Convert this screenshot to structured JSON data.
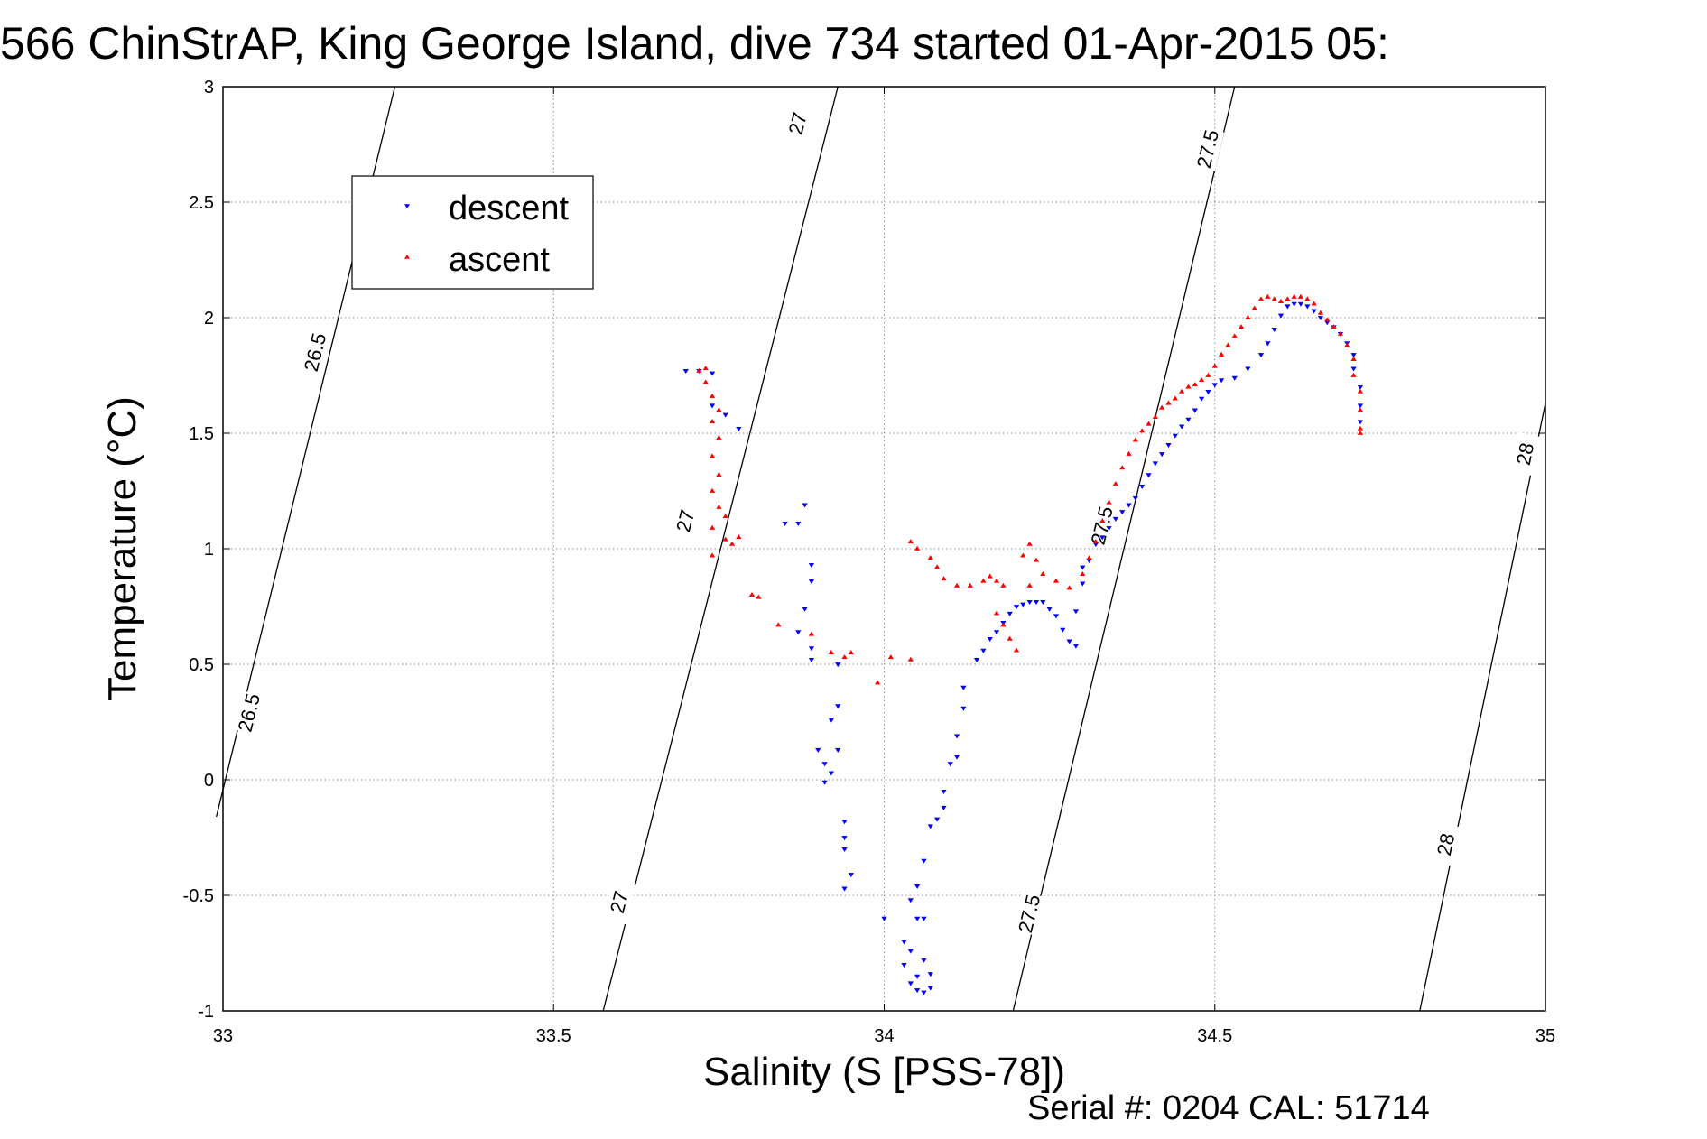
{
  "title": "566 ChinStrAP, King George Island, dive 734 started 01-Apr-2015 05:",
  "footer": "Serial #: 0204  CAL: 51714",
  "chart_data": {
    "type": "scatter",
    "xlabel": "Salinity (S [PSS-78])",
    "ylabel": "Temperature (°C)",
    "xlim": [
      33,
      35
    ],
    "ylim": [
      -1,
      3
    ],
    "xticks": [
      "33",
      "33.5",
      "34",
      "34.5",
      "35"
    ],
    "yticks": [
      "-1",
      "-0.5",
      "0",
      "0.5",
      "1",
      "1.5",
      "2",
      "2.5",
      "3"
    ],
    "grid": true,
    "legend_position": "top-left",
    "series": [
      {
        "name": "descent",
        "marker": "triangle-down",
        "color": "#0000ff",
        "points": [
          [
            33.7,
            1.77
          ],
          [
            33.72,
            1.77
          ],
          [
            33.74,
            1.76
          ],
          [
            33.74,
            1.62
          ],
          [
            33.76,
            1.58
          ],
          [
            33.78,
            1.52
          ],
          [
            33.85,
            1.11
          ],
          [
            33.87,
            1.11
          ],
          [
            33.88,
            1.19
          ],
          [
            33.89,
            0.93
          ],
          [
            33.89,
            0.86
          ],
          [
            33.88,
            0.74
          ],
          [
            33.87,
            0.64
          ],
          [
            33.89,
            0.57
          ],
          [
            33.89,
            0.52
          ],
          [
            33.93,
            0.5
          ],
          [
            33.93,
            0.32
          ],
          [
            33.92,
            0.26
          ],
          [
            33.93,
            0.13
          ],
          [
            33.91,
            0.07
          ],
          [
            33.9,
            0.13
          ],
          [
            33.92,
            0.03
          ],
          [
            33.91,
            -0.01
          ],
          [
            33.94,
            -0.18
          ],
          [
            33.94,
            -0.25
          ],
          [
            33.94,
            -0.3
          ],
          [
            33.95,
            -0.41
          ],
          [
            33.94,
            -0.47
          ],
          [
            34.0,
            -0.6
          ],
          [
            34.04,
            -0.52
          ],
          [
            34.05,
            -0.6
          ],
          [
            34.03,
            -0.7
          ],
          [
            34.04,
            -0.74
          ],
          [
            34.03,
            -0.8
          ],
          [
            34.05,
            -0.85
          ],
          [
            34.04,
            -0.88
          ],
          [
            34.05,
            -0.91
          ],
          [
            34.06,
            -0.92
          ],
          [
            34.07,
            -0.9
          ],
          [
            34.07,
            -0.84
          ],
          [
            34.06,
            -0.78
          ],
          [
            34.06,
            -0.6
          ],
          [
            34.05,
            -0.46
          ],
          [
            34.06,
            -0.35
          ],
          [
            34.07,
            -0.2
          ],
          [
            34.08,
            -0.17
          ],
          [
            34.09,
            -0.12
          ],
          [
            34.09,
            -0.05
          ],
          [
            34.1,
            0.07
          ],
          [
            34.11,
            0.1
          ],
          [
            34.11,
            0.19
          ],
          [
            34.12,
            0.31
          ],
          [
            34.12,
            0.4
          ],
          [
            34.14,
            0.52
          ],
          [
            34.15,
            0.56
          ],
          [
            34.16,
            0.61
          ],
          [
            34.17,
            0.64
          ],
          [
            34.18,
            0.68
          ],
          [
            34.19,
            0.72
          ],
          [
            34.2,
            0.75
          ],
          [
            34.21,
            0.76
          ],
          [
            34.22,
            0.77
          ],
          [
            34.23,
            0.77
          ],
          [
            34.24,
            0.77
          ],
          [
            34.25,
            0.74
          ],
          [
            34.26,
            0.71
          ],
          [
            34.27,
            0.65
          ],
          [
            34.28,
            0.6
          ],
          [
            34.29,
            0.58
          ],
          [
            34.29,
            0.73
          ],
          [
            34.3,
            0.85
          ],
          [
            34.3,
            0.92
          ],
          [
            34.31,
            0.95
          ],
          [
            34.32,
            1.02
          ],
          [
            34.33,
            1.05
          ],
          [
            34.34,
            1.09
          ],
          [
            34.35,
            1.13
          ],
          [
            34.36,
            1.16
          ],
          [
            34.37,
            1.19
          ],
          [
            34.38,
            1.22
          ],
          [
            34.39,
            1.27
          ],
          [
            34.4,
            1.32
          ],
          [
            34.41,
            1.37
          ],
          [
            34.42,
            1.41
          ],
          [
            34.43,
            1.45
          ],
          [
            34.44,
            1.49
          ],
          [
            34.45,
            1.53
          ],
          [
            34.46,
            1.56
          ],
          [
            34.47,
            1.6
          ],
          [
            34.48,
            1.65
          ],
          [
            34.49,
            1.68
          ],
          [
            34.5,
            1.71
          ],
          [
            34.51,
            1.73
          ],
          [
            34.53,
            1.74
          ],
          [
            34.55,
            1.78
          ],
          [
            34.57,
            1.84
          ],
          [
            34.58,
            1.89
          ],
          [
            34.59,
            1.95
          ],
          [
            34.6,
            2.01
          ],
          [
            34.61,
            2.05
          ],
          [
            34.62,
            2.06
          ],
          [
            34.63,
            2.06
          ],
          [
            34.64,
            2.05
          ],
          [
            34.65,
            2.03
          ],
          [
            34.66,
            2.0
          ],
          [
            34.67,
            1.98
          ],
          [
            34.68,
            1.96
          ],
          [
            34.69,
            1.93
          ],
          [
            34.7,
            1.89
          ],
          [
            34.71,
            1.84
          ],
          [
            34.71,
            1.78
          ],
          [
            34.72,
            1.7
          ],
          [
            34.72,
            1.62
          ],
          [
            34.72,
            1.55
          ]
        ]
      },
      {
        "name": "ascent",
        "marker": "triangle-up",
        "color": "#ff0000",
        "points": [
          [
            33.73,
            1.78
          ],
          [
            33.72,
            1.77
          ],
          [
            33.73,
            1.72
          ],
          [
            33.74,
            1.66
          ],
          [
            33.75,
            1.6
          ],
          [
            33.74,
            1.55
          ],
          [
            33.75,
            1.48
          ],
          [
            33.74,
            1.4
          ],
          [
            33.75,
            1.32
          ],
          [
            33.74,
            1.25
          ],
          [
            33.75,
            1.18
          ],
          [
            33.76,
            1.14
          ],
          [
            33.74,
            1.09
          ],
          [
            33.76,
            1.04
          ],
          [
            33.77,
            1.02
          ],
          [
            33.74,
            0.97
          ],
          [
            33.78,
            1.05
          ],
          [
            33.8,
            0.8
          ],
          [
            33.81,
            0.79
          ],
          [
            33.84,
            0.67
          ],
          [
            33.89,
            0.63
          ],
          [
            33.92,
            0.55
          ],
          [
            33.94,
            0.53
          ],
          [
            33.95,
            0.55
          ],
          [
            33.99,
            0.42
          ],
          [
            34.01,
            0.53
          ],
          [
            34.04,
            0.52
          ],
          [
            34.04,
            1.03
          ],
          [
            34.05,
            1.0
          ],
          [
            34.07,
            0.96
          ],
          [
            34.08,
            0.92
          ],
          [
            34.09,
            0.87
          ],
          [
            34.11,
            0.84
          ],
          [
            34.13,
            0.84
          ],
          [
            34.15,
            0.86
          ],
          [
            34.16,
            0.88
          ],
          [
            34.17,
            0.86
          ],
          [
            34.18,
            0.84
          ],
          [
            34.17,
            0.72
          ],
          [
            34.18,
            0.67
          ],
          [
            34.19,
            0.61
          ],
          [
            34.2,
            0.56
          ],
          [
            34.22,
            0.84
          ],
          [
            34.21,
            0.97
          ],
          [
            34.22,
            1.02
          ],
          [
            34.23,
            0.95
          ],
          [
            34.24,
            0.89
          ],
          [
            34.26,
            0.86
          ],
          [
            34.28,
            0.83
          ],
          [
            34.3,
            0.89
          ],
          [
            34.31,
            0.96
          ],
          [
            34.32,
            1.03
          ],
          [
            34.33,
            1.12
          ],
          [
            34.34,
            1.2
          ],
          [
            34.35,
            1.28
          ],
          [
            34.36,
            1.35
          ],
          [
            34.37,
            1.41
          ],
          [
            34.38,
            1.47
          ],
          [
            34.39,
            1.51
          ],
          [
            34.4,
            1.54
          ],
          [
            34.41,
            1.57
          ],
          [
            34.42,
            1.61
          ],
          [
            34.43,
            1.63
          ],
          [
            34.44,
            1.65
          ],
          [
            34.45,
            1.68
          ],
          [
            34.46,
            1.7
          ],
          [
            34.47,
            1.71
          ],
          [
            34.48,
            1.73
          ],
          [
            34.49,
            1.75
          ],
          [
            34.5,
            1.79
          ],
          [
            34.51,
            1.84
          ],
          [
            34.52,
            1.88
          ],
          [
            34.53,
            1.92
          ],
          [
            34.54,
            1.96
          ],
          [
            34.55,
            2.0
          ],
          [
            34.56,
            2.04
          ],
          [
            34.57,
            2.08
          ],
          [
            34.58,
            2.09
          ],
          [
            34.59,
            2.08
          ],
          [
            34.6,
            2.07
          ],
          [
            34.61,
            2.08
          ],
          [
            34.62,
            2.09
          ],
          [
            34.63,
            2.09
          ],
          [
            34.64,
            2.08
          ],
          [
            34.65,
            2.06
          ],
          [
            34.66,
            2.02
          ],
          [
            34.67,
            1.99
          ],
          [
            34.68,
            1.96
          ],
          [
            34.69,
            1.93
          ],
          [
            34.7,
            1.88
          ],
          [
            34.71,
            1.82
          ],
          [
            34.71,
            1.75
          ],
          [
            34.72,
            1.68
          ],
          [
            34.72,
            1.6
          ],
          [
            34.72,
            1.52
          ],
          [
            34.72,
            1.5
          ]
        ]
      }
    ],
    "contours": [
      {
        "label": "26.5",
        "from": [
          32.99,
          -0.16
        ],
        "to": [
          33.26,
          3.0
        ],
        "label_positions": [
          [
            33.04,
            0.29
          ],
          [
            33.14,
            1.85
          ]
        ]
      },
      {
        "label": "27",
        "from": [
          33.575,
          -1.0
        ],
        "to": [
          33.93,
          3.0
        ],
        "label_positions": [
          [
            33.6,
            -0.53
          ],
          [
            33.7,
            1.12
          ],
          [
            33.87,
            2.84
          ]
        ]
      },
      {
        "label": "27.5",
        "from": [
          34.195,
          -1.0
        ],
        "to": [
          34.53,
          3.0
        ],
        "label_positions": [
          [
            34.22,
            -0.58
          ],
          [
            34.33,
            1.1
          ],
          [
            34.49,
            2.73
          ]
        ]
      },
      {
        "label": "28",
        "from": [
          34.81,
          -1.0
        ],
        "to": [
          35.0,
          1.63
        ],
        "label_positions": [
          [
            34.85,
            -0.28
          ],
          [
            34.97,
            1.41
          ]
        ]
      }
    ]
  }
}
